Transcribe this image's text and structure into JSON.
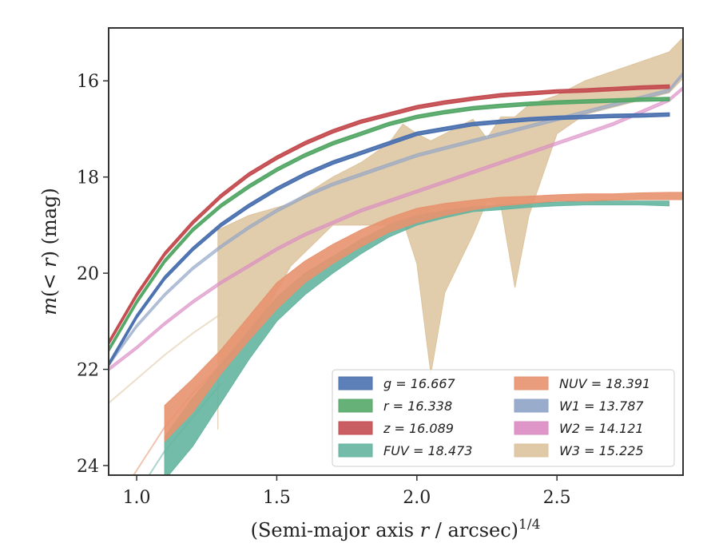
{
  "chart_data": {
    "type": "area",
    "xlabel": "(Semi-major axis r / arcsec)^1/4",
    "ylabel": "m(< r) (mag)",
    "xlim": [
      0.9,
      2.95
    ],
    "ylim": [
      24.2,
      14.9
    ],
    "y_inverted": true,
    "grid": false,
    "legend_position": "lower-right",
    "xticks": [
      "1.0",
      "1.5",
      "2.0",
      "2.5"
    ],
    "yticks": [
      "16",
      "18",
      "20",
      "22",
      "24"
    ],
    "series": [
      {
        "name": "g = 16.667",
        "color": "#4c72b0",
        "x": [
          0.9,
          1.0,
          1.1,
          1.2,
          1.3,
          1.4,
          1.5,
          1.6,
          1.7,
          1.8,
          1.9,
          2.0,
          2.1,
          2.2,
          2.3,
          2.4,
          2.5,
          2.6,
          2.7,
          2.8,
          2.9
        ],
        "y": [
          21.9,
          20.9,
          20.1,
          19.5,
          19.0,
          18.6,
          18.25,
          17.95,
          17.7,
          17.5,
          17.3,
          17.1,
          17.0,
          16.9,
          16.85,
          16.8,
          16.77,
          16.75,
          16.73,
          16.72,
          16.7
        ],
        "width": 0.06
      },
      {
        "name": "r = 16.338",
        "color": "#55a868",
        "x": [
          0.9,
          1.0,
          1.1,
          1.2,
          1.3,
          1.4,
          1.5,
          1.6,
          1.7,
          1.8,
          1.9,
          2.0,
          2.1,
          2.2,
          2.3,
          2.4,
          2.5,
          2.6,
          2.7,
          2.8,
          2.9
        ],
        "y": [
          21.6,
          20.6,
          19.75,
          19.1,
          18.6,
          18.2,
          17.85,
          17.55,
          17.3,
          17.1,
          16.9,
          16.75,
          16.65,
          16.57,
          16.52,
          16.48,
          16.45,
          16.43,
          16.41,
          16.39,
          16.38
        ],
        "width": 0.06
      },
      {
        "name": "z = 16.089",
        "color": "#c44e52",
        "x": [
          0.9,
          1.0,
          1.1,
          1.2,
          1.3,
          1.4,
          1.5,
          1.6,
          1.7,
          1.8,
          1.9,
          2.0,
          2.1,
          2.2,
          2.3,
          2.4,
          2.5,
          2.6,
          2.7,
          2.8,
          2.9
        ],
        "y": [
          21.45,
          20.45,
          19.6,
          18.95,
          18.4,
          17.95,
          17.6,
          17.3,
          17.05,
          16.85,
          16.7,
          16.55,
          16.45,
          16.37,
          16.3,
          16.26,
          16.22,
          16.2,
          16.17,
          16.14,
          16.12
        ],
        "width": 0.06
      },
      {
        "name": "FUV = 18.473",
        "color": "#64b5a0",
        "x": [
          1.1,
          1.2,
          1.3,
          1.4,
          1.5,
          1.6,
          1.7,
          1.8,
          1.9,
          2.0,
          2.1,
          2.2,
          2.3,
          2.4,
          2.5,
          2.6,
          2.7,
          2.8,
          2.9
        ],
        "y_upper": [
          23.4,
          22.6,
          21.9,
          21.2,
          20.5,
          20.0,
          19.65,
          19.3,
          19.0,
          18.8,
          18.7,
          18.62,
          18.58,
          18.55,
          18.52,
          18.5,
          18.5,
          18.5,
          18.5
        ],
        "y_lower": [
          24.3,
          23.6,
          22.7,
          21.8,
          21.0,
          20.45,
          20.0,
          19.6,
          19.25,
          19.0,
          18.85,
          18.72,
          18.68,
          18.63,
          18.6,
          18.58,
          18.58,
          18.58,
          18.6
        ]
      },
      {
        "name": "NUV = 18.391",
        "color": "#e8926e",
        "x": [
          1.1,
          1.2,
          1.3,
          1.4,
          1.5,
          1.6,
          1.7,
          1.8,
          1.9,
          2.0,
          2.1,
          2.2,
          2.3,
          2.4,
          2.5,
          2.6,
          2.7,
          2.8,
          2.9,
          2.95
        ],
        "y_upper": [
          22.75,
          22.2,
          21.6,
          20.9,
          20.2,
          19.75,
          19.4,
          19.1,
          18.85,
          18.65,
          18.55,
          18.48,
          18.42,
          18.4,
          18.37,
          18.35,
          18.35,
          18.33,
          18.32,
          18.32
        ],
        "y_lower": [
          23.5,
          22.9,
          22.1,
          21.4,
          20.75,
          20.2,
          19.8,
          19.45,
          19.15,
          18.95,
          18.8,
          18.68,
          18.6,
          18.55,
          18.5,
          18.5,
          18.48,
          18.47,
          18.47,
          18.47
        ]
      },
      {
        "name": "W1 = 13.787",
        "color": "#8fa3c7",
        "x": [
          0.9,
          1.0,
          1.1,
          1.2,
          1.3,
          1.4,
          1.5,
          1.6,
          1.7,
          1.8,
          1.9,
          2.0,
          2.1,
          2.2,
          2.3,
          2.4,
          2.5,
          2.6,
          2.7,
          2.8,
          2.9,
          2.95
        ],
        "y": [
          21.9,
          21.1,
          20.45,
          19.9,
          19.45,
          19.05,
          18.7,
          18.4,
          18.15,
          17.95,
          17.75,
          17.55,
          17.4,
          17.25,
          17.1,
          16.95,
          16.8,
          16.65,
          16.5,
          16.35,
          16.2,
          15.85
        ],
        "width": 0.06
      },
      {
        "name": "W2 = 14.121",
        "color": "#da8bc3",
        "x": [
          0.9,
          1.0,
          1.1,
          1.2,
          1.3,
          1.4,
          1.5,
          1.6,
          1.7,
          1.8,
          1.9,
          2.0,
          2.1,
          2.2,
          2.3,
          2.4,
          2.5,
          2.6,
          2.7,
          2.8,
          2.9,
          2.95
        ],
        "y": [
          22.0,
          21.55,
          21.05,
          20.6,
          20.2,
          19.85,
          19.5,
          19.2,
          18.95,
          18.7,
          18.5,
          18.3,
          18.1,
          17.9,
          17.7,
          17.5,
          17.3,
          17.1,
          16.9,
          16.65,
          16.4,
          16.15
        ],
        "width": 0.06
      },
      {
        "name": "W3 = 15.225",
        "color": "#dcc39d",
        "x": [
          1.29,
          1.29,
          1.4,
          1.55,
          1.7,
          1.8,
          1.9,
          1.95,
          2.0,
          2.05,
          2.1,
          2.2,
          2.25,
          2.3,
          2.35,
          2.4,
          2.5,
          2.6,
          2.7,
          2.8,
          2.9,
          2.95
        ],
        "y_upper": [
          19.1,
          19.1,
          18.8,
          18.55,
          18.0,
          17.7,
          17.3,
          16.9,
          17.1,
          17.25,
          17.1,
          16.8,
          17.2,
          16.75,
          16.75,
          16.5,
          16.3,
          16.0,
          15.8,
          15.6,
          15.4,
          15.1
        ],
        "y_lower": [
          23.25,
          22.0,
          21.4,
          19.85,
          19.0,
          19.0,
          19.0,
          18.9,
          19.8,
          22.1,
          20.4,
          19.2,
          18.5,
          18.6,
          20.3,
          18.8,
          17.1,
          16.7,
          16.55,
          16.4,
          16.25,
          15.95
        ]
      }
    ],
    "extrapolated_lines": [
      {
        "name": "FUV",
        "x": [
          0.9,
          1.0,
          1.1,
          1.2,
          1.3
        ],
        "y": [
          25.5,
          24.6,
          23.7,
          23.0,
          22.3
        ]
      },
      {
        "name": "NUV",
        "x": [
          0.9,
          1.0,
          1.1,
          1.2,
          1.3
        ],
        "y": [
          25.0,
          24.1,
          23.2,
          22.5,
          21.9
        ]
      },
      {
        "name": "W3",
        "x": [
          0.9,
          1.0,
          1.1,
          1.2,
          1.3
        ],
        "y": [
          22.7,
          22.2,
          21.7,
          21.25,
          20.85
        ]
      }
    ]
  }
}
